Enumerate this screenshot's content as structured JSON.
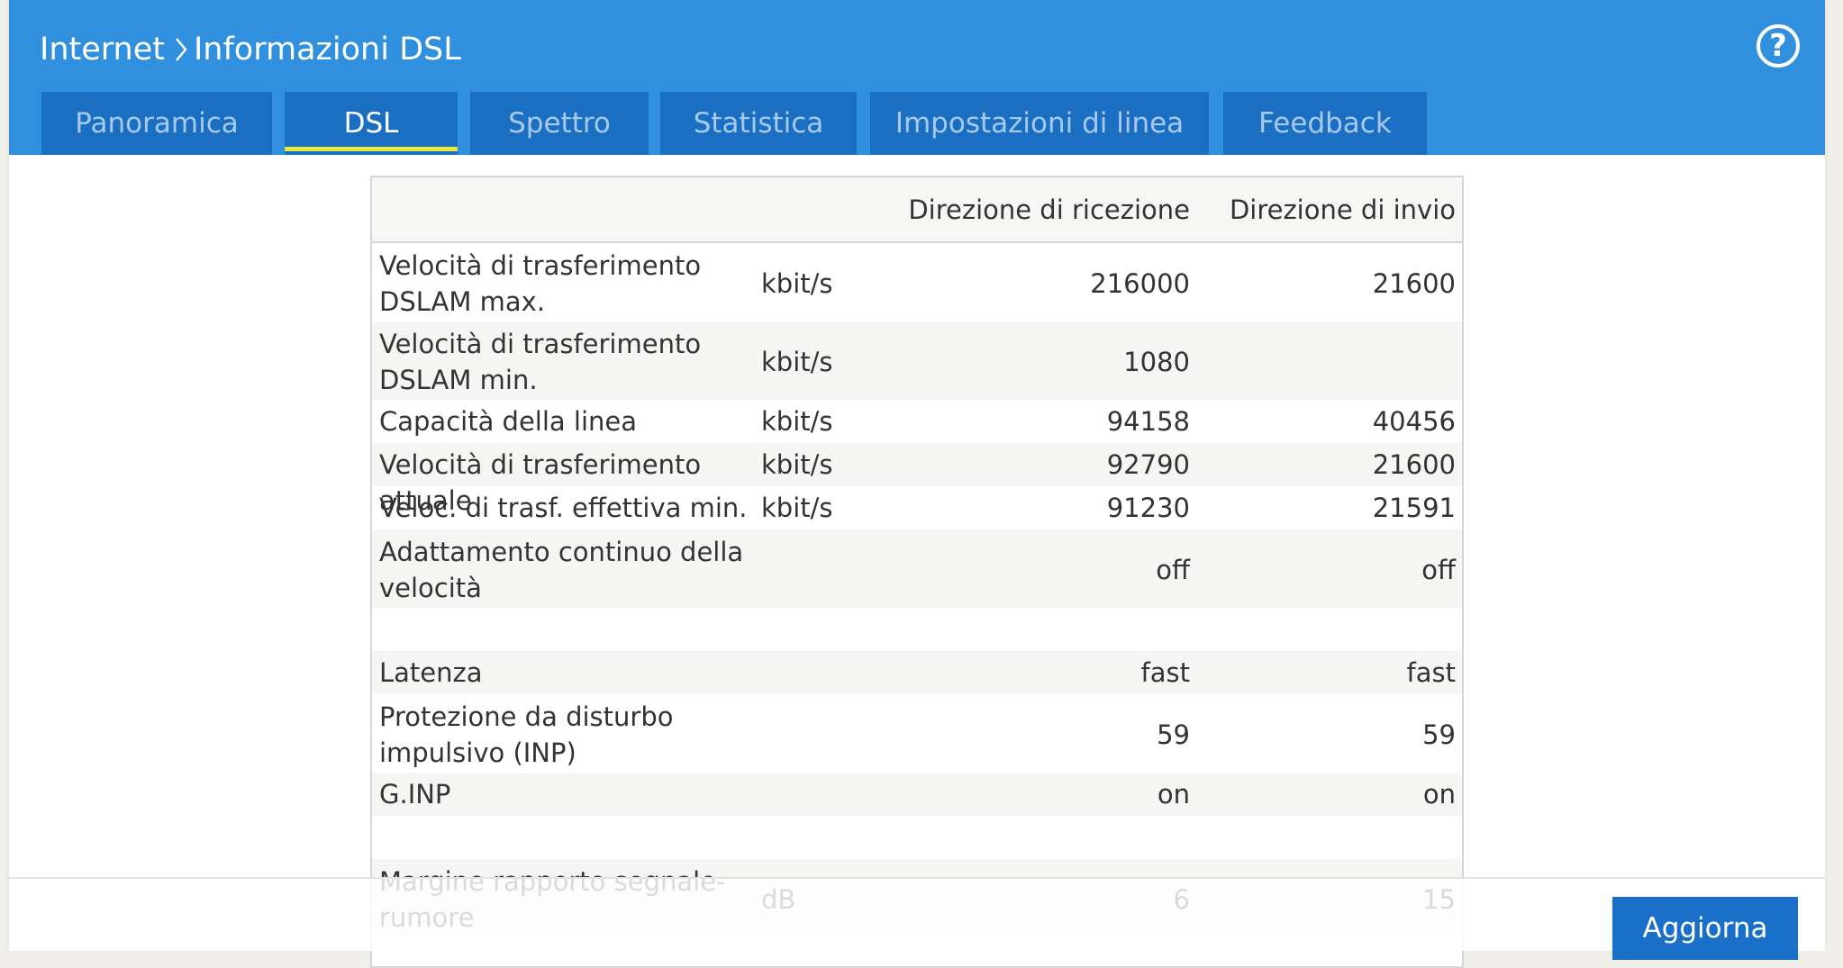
{
  "header": {
    "breadcrumb": [
      "Internet",
      "Informazioni DSL"
    ],
    "help_icon": "question-circle-icon",
    "separator_icon": "chevron-right-icon"
  },
  "tabs": [
    {
      "label": "Panoramica",
      "active": false
    },
    {
      "label": "DSL",
      "active": true
    },
    {
      "label": "Spettro",
      "active": false
    },
    {
      "label": "Statistica",
      "active": false
    },
    {
      "label": "Impostazioni di linea",
      "active": false
    },
    {
      "label": "Feedback",
      "active": false
    }
  ],
  "table": {
    "columns": [
      "",
      "",
      "Direzione di ricezione",
      "Direzione di invio"
    ],
    "rows": [
      {
        "label": "Velocità di trasferimento DSLAM max.",
        "unit": "kbit/s",
        "down": "216000",
        "up": "21600"
      },
      {
        "label": "Velocità di trasferimento DSLAM min.",
        "unit": "kbit/s",
        "down": "1080",
        "up": ""
      },
      {
        "label": "Capacità della linea",
        "unit": "kbit/s",
        "down": "94158",
        "up": "40456"
      },
      {
        "label": "Velocità di trasferimento attuale",
        "unit": "kbit/s",
        "down": "92790",
        "up": "21600"
      },
      {
        "label": "Veloc. di trasf. effettiva min.",
        "unit": "kbit/s",
        "down": "91230",
        "up": "21591"
      },
      {
        "label": "Adattamento continuo della velocità",
        "unit": "",
        "down": "off",
        "up": "off"
      },
      {
        "label": "",
        "unit": "",
        "down": "",
        "up": ""
      },
      {
        "label": "Latenza",
        "unit": "",
        "down": "fast",
        "up": "fast"
      },
      {
        "label": "Protezione da disturbo impulsivo (INP)",
        "unit": "",
        "down": "59",
        "up": "59"
      },
      {
        "label": "G.INP",
        "unit": "",
        "down": "on",
        "up": "on"
      },
      {
        "label": "",
        "unit": "",
        "down": "",
        "up": ""
      },
      {
        "label": "Margine rapporto segnale-rumore",
        "unit": "dB",
        "down": "6",
        "up": "15"
      }
    ]
  },
  "footer": {
    "refresh_label": "Aggiorna"
  }
}
